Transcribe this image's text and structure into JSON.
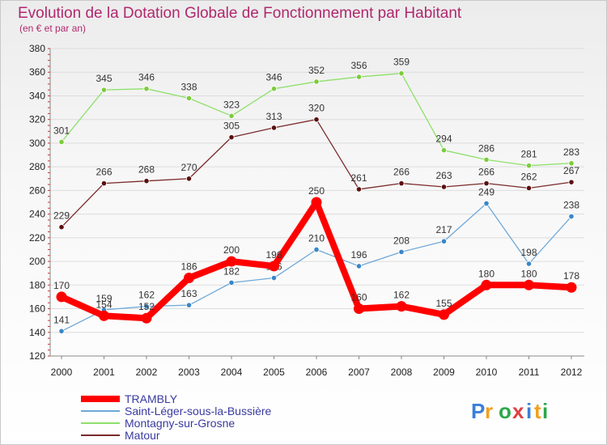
{
  "chart_data": {
    "type": "line",
    "title": "Evolution de la Dotation Globale de Fonctionnement par Habitant",
    "subtitle": "(en € et par an)",
    "xlabel": "",
    "ylabel": "",
    "ylim": [
      120,
      380
    ],
    "yticks": [
      120,
      140,
      160,
      180,
      200,
      220,
      240,
      260,
      280,
      300,
      320,
      340,
      360,
      380
    ],
    "categories": [
      "2000",
      "2001",
      "2002",
      "2003",
      "2004",
      "2005",
      "2006",
      "2007",
      "2008",
      "2009",
      "2010",
      "2011",
      "2012"
    ],
    "series": [
      {
        "name": "TRAMBLY",
        "color": "#ff0000",
        "point_color": "#ff0000",
        "values": [
          170,
          154,
          152,
          186,
          200,
          196,
          250,
          160,
          162,
          155,
          180,
          180,
          178
        ]
      },
      {
        "name": "Saint-Léger-sous-la-Bussière",
        "color": "#6fa8d8",
        "point_color": "#3a86c8",
        "values": [
          141,
          159,
          162,
          163,
          182,
          186,
          210,
          196,
          208,
          217,
          249,
          198,
          238
        ]
      },
      {
        "name": "Montagny-sur-Grosne",
        "color": "#8ee06a",
        "point_color": "#7ccc3c",
        "values": [
          301,
          345,
          346,
          338,
          323,
          346,
          352,
          356,
          359,
          294,
          286,
          281,
          283
        ]
      },
      {
        "name": "Matour",
        "color": "#7a2a2a",
        "point_color": "#5a1010",
        "values": [
          229,
          266,
          268,
          270,
          305,
          313,
          320,
          261,
          266,
          263,
          266,
          262,
          267
        ]
      }
    ]
  },
  "logo": {
    "letters": [
      "P",
      "r",
      "o",
      "x",
      "i",
      "t",
      "i"
    ],
    "colors": [
      "#3b7fd8",
      "#f0a020",
      "#2aa84a",
      "#e04040",
      "#3b7fd8",
      "#f0a020",
      "#2aa84a"
    ]
  }
}
